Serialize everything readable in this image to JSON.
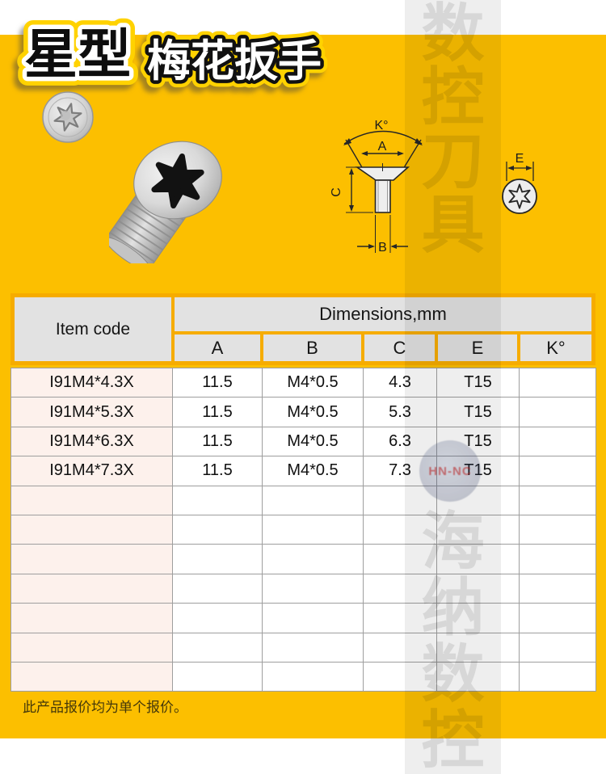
{
  "header": {
    "title_black": "星型",
    "title_white": "梅花扳手"
  },
  "watermark": {
    "vertical_text_top": [
      "数",
      "控",
      "刀",
      "具"
    ],
    "vertical_text_bottom": [
      "海",
      "纳",
      "数",
      "控"
    ],
    "logo_text": "HN-NC"
  },
  "diagram": {
    "angle_label": "K°",
    "head_width_label": "A",
    "thread_label": "B",
    "height_label": "C",
    "torx_size_label": "E"
  },
  "table": {
    "item_code_header": "Item code",
    "dimensions_header": "Dimensions,mm",
    "columns": [
      "A",
      "B",
      "C",
      "E",
      "K°"
    ],
    "rows": [
      [
        "I91M4*4.3X",
        "11.5",
        "M4*0.5",
        "4.3",
        "T15",
        ""
      ],
      [
        "I91M4*5.3X",
        "11.5",
        "M4*0.5",
        "5.3",
        "T15",
        ""
      ],
      [
        "I91M4*6.3X",
        "11.5",
        "M4*0.5",
        "6.3",
        "T15",
        ""
      ],
      [
        "I91M4*7.3X",
        "11.5",
        "M4*0.5",
        "7.3",
        "T15",
        ""
      ]
    ],
    "empty_row_count": 7
  },
  "footer": {
    "note": "此产品报价均为单个报价。"
  },
  "colors": {
    "page_yellow": "#FCBF00",
    "table_frame_orange": "#F6AC00",
    "header_cell_gray": "#E2E2E2",
    "item_column_pink": "#FDF1EC",
    "grid_line_gray": "#9E9E9E",
    "title_glow_yellow": "#FFD200"
  }
}
